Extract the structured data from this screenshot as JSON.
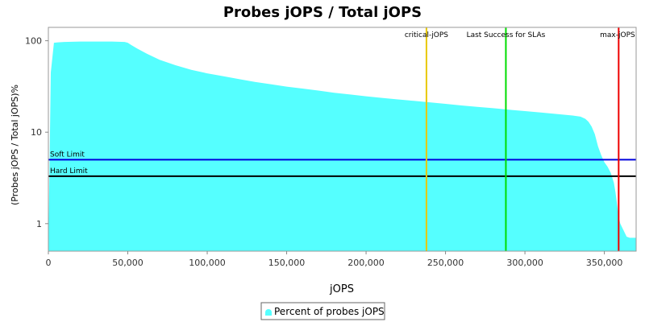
{
  "chart_data": {
    "type": "area",
    "title": "Probes jOPS / Total jOPS",
    "xlabel": "jOPS",
    "ylabel": "(Probes jOPS / Total jOPS)%",
    "xlim": [
      0,
      370000
    ],
    "ylim": [
      0.5,
      140
    ],
    "y_scale": "log",
    "x_ticks": [
      0,
      50000,
      100000,
      150000,
      200000,
      250000,
      300000,
      350000
    ],
    "x_tick_labels": [
      "0",
      "50,000",
      "100,000",
      "150,000",
      "200,000",
      "250,000",
      "300,000",
      "350,000"
    ],
    "y_ticks": [
      1,
      10,
      100
    ],
    "y_tick_labels": [
      "1",
      "10",
      "100"
    ],
    "grid": false,
    "legend_position": "bottom",
    "colors": {
      "area": "#55FFFF",
      "critical": "#E8C800",
      "last_success": "#00DD00",
      "max": "#EE0000",
      "soft_limit": "#0000DD",
      "hard_limit": "#000000"
    },
    "series": [
      {
        "name": "Percent of probes jOPS",
        "x": [
          0,
          1500,
          3500,
          6000,
          10000,
          20000,
          30000,
          40000,
          48000,
          50000,
          52000,
          56000,
          62000,
          70000,
          80000,
          90000,
          100000,
          110000,
          120000,
          130000,
          140000,
          150000,
          160000,
          170000,
          180000,
          190000,
          200000,
          210000,
          220000,
          230000,
          240000,
          250000,
          260000,
          270000,
          280000,
          290000,
          300000,
          310000,
          320000,
          330000,
          335000,
          338000,
          340000,
          342000,
          344000,
          346000,
          348000,
          350000,
          352000,
          354000,
          356000,
          357000,
          358000,
          359000,
          360000,
          362000,
          364000,
          366000,
          370000
        ],
        "y": [
          0.5,
          45,
          95,
          96,
          97,
          98,
          98,
          98,
          97,
          95,
          90,
          82,
          72,
          62,
          54,
          48,
          44,
          41,
          38,
          35.5,
          33.5,
          31.5,
          30,
          28.5,
          27,
          25.8,
          24.7,
          23.7,
          22.8,
          22,
          21.2,
          20.4,
          19.6,
          18.9,
          18.3,
          17.6,
          17,
          16.4,
          15.8,
          15.2,
          14.8,
          14,
          13,
          11.5,
          9.5,
          7,
          5.6,
          4.7,
          4.2,
          3.6,
          2.8,
          2.2,
          1.6,
          1.2,
          1.0,
          0.85,
          0.72,
          0.7,
          0.7
        ]
      }
    ],
    "vertical_markers": [
      {
        "label": "critical-jOPS",
        "x": 238000,
        "color": "#E8C800"
      },
      {
        "label": "Last Success for SLAs",
        "x": 288000,
        "color": "#00DD00"
      },
      {
        "label": "max-jOPS",
        "x": 359000,
        "color": "#EE0000"
      }
    ],
    "horizontal_markers": [
      {
        "label": "Soft Limit",
        "y": 5,
        "color": "#0000DD"
      },
      {
        "label": "Hard Limit",
        "y": 3.3,
        "color": "#000000"
      }
    ]
  }
}
